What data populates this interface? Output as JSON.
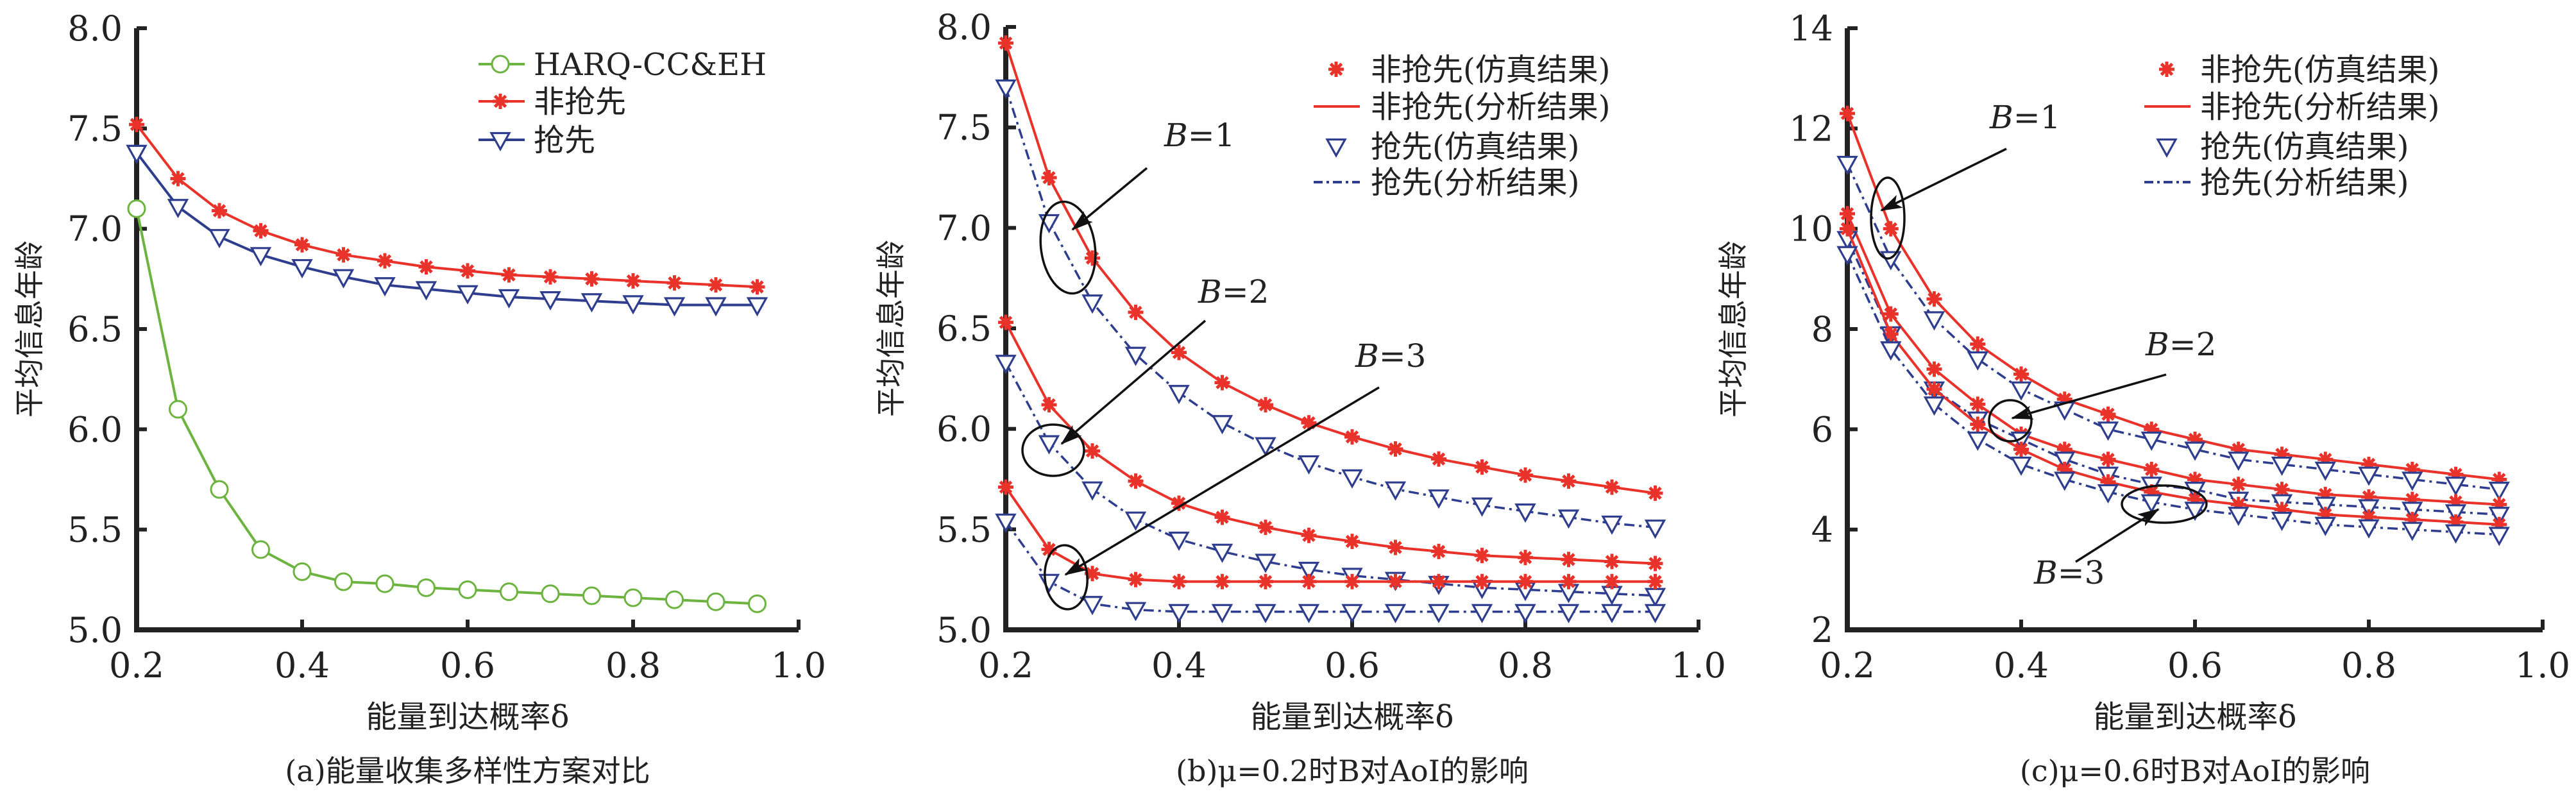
{
  "colors": {
    "green": "#6cb33f",
    "red": "#e8322a",
    "blue": "#2f3d8f",
    "axis": "#222222"
  },
  "chart_data": [
    {
      "type": "line",
      "caption": "(a)能量收集多样性方案对比",
      "xlabel": "能量到达概率δ",
      "ylabel": "平均信息年龄",
      "xlim": [
        0.2,
        1.0
      ],
      "ylim": [
        5.0,
        8.0
      ],
      "xticks": [
        "0.2",
        "0.4",
        "0.6",
        "0.8",
        "1.0"
      ],
      "yticks": [
        "5.0",
        "5.5",
        "6.0",
        "6.5",
        "7.0",
        "7.5",
        "8.0"
      ],
      "legend_position": "top-right",
      "x": [
        0.2,
        0.25,
        0.3,
        0.35,
        0.4,
        0.45,
        0.5,
        0.55,
        0.6,
        0.65,
        0.7,
        0.75,
        0.8,
        0.85,
        0.9,
        0.95
      ],
      "series": [
        {
          "name": "HARQ-CC&EH",
          "color": "green",
          "marker": "circle",
          "style": "solid",
          "values": [
            7.1,
            6.1,
            5.7,
            5.4,
            5.29,
            5.24,
            5.23,
            5.21,
            5.2,
            5.19,
            5.18,
            5.17,
            5.16,
            5.15,
            5.14,
            5.13
          ]
        },
        {
          "name": "非抢先",
          "color": "red",
          "marker": "star",
          "style": "solid",
          "values": [
            7.52,
            7.25,
            7.09,
            6.99,
            6.92,
            6.87,
            6.84,
            6.81,
            6.79,
            6.77,
            6.76,
            6.75,
            6.74,
            6.73,
            6.72,
            6.71
          ]
        },
        {
          "name": "抢先",
          "color": "blue",
          "marker": "triangle",
          "style": "solid",
          "values": [
            7.38,
            7.11,
            6.96,
            6.87,
            6.81,
            6.76,
            6.72,
            6.7,
            6.68,
            6.66,
            6.65,
            6.64,
            6.63,
            6.62,
            6.62,
            6.62
          ]
        }
      ],
      "legend": [
        {
          "label": "HARQ-CC&EH",
          "color": "green",
          "marker": "circle",
          "line": "solid"
        },
        {
          "label": "非抢先",
          "color": "red",
          "marker": "star",
          "line": "solid"
        },
        {
          "label": "抢先",
          "color": "blue",
          "marker": "triangle",
          "line": "solid"
        }
      ],
      "annotations": []
    },
    {
      "type": "line",
      "caption": "(b)μ=0.2时B对AoI的影响",
      "xlabel": "能量到达概率δ",
      "ylabel": "平均信息年龄",
      "xlim": [
        0.2,
        1.0
      ],
      "ylim": [
        5.0,
        8.0
      ],
      "xticks": [
        "0.2",
        "0.4",
        "0.6",
        "0.8",
        "1.0"
      ],
      "yticks": [
        "5.0",
        "5.5",
        "6.0",
        "6.5",
        "7.0",
        "7.5",
        "8.0"
      ],
      "legend_position": "top-right",
      "x": [
        0.2,
        0.25,
        0.3,
        0.35,
        0.4,
        0.45,
        0.5,
        0.55,
        0.6,
        0.65,
        0.7,
        0.75,
        0.8,
        0.85,
        0.9,
        0.95
      ],
      "series": [
        {
          "name": "非抢先 B=1",
          "color": "red",
          "marker": "star",
          "style": "solid",
          "values": [
            7.92,
            7.25,
            6.85,
            6.58,
            6.38,
            6.23,
            6.12,
            6.03,
            5.96,
            5.9,
            5.85,
            5.81,
            5.77,
            5.74,
            5.71,
            5.68
          ]
        },
        {
          "name": "抢先 B=1",
          "color": "blue",
          "marker": "triangle",
          "style": "dashdot",
          "values": [
            7.7,
            7.03,
            6.63,
            6.37,
            6.18,
            6.03,
            5.92,
            5.83,
            5.76,
            5.7,
            5.66,
            5.62,
            5.59,
            5.56,
            5.53,
            5.51
          ]
        },
        {
          "name": "非抢先 B=2",
          "color": "red",
          "marker": "star",
          "style": "solid",
          "values": [
            6.53,
            6.12,
            5.89,
            5.74,
            5.63,
            5.56,
            5.51,
            5.47,
            5.44,
            5.41,
            5.39,
            5.37,
            5.36,
            5.35,
            5.34,
            5.33
          ]
        },
        {
          "name": "抢先 B=2",
          "color": "blue",
          "marker": "triangle",
          "style": "dashdot",
          "values": [
            6.33,
            5.93,
            5.7,
            5.55,
            5.45,
            5.39,
            5.34,
            5.3,
            5.27,
            5.25,
            5.23,
            5.21,
            5.2,
            5.19,
            5.18,
            5.17
          ]
        },
        {
          "name": "非抢先 B=3",
          "color": "red",
          "marker": "star",
          "style": "solid",
          "values": [
            5.71,
            5.4,
            5.28,
            5.25,
            5.24,
            5.24,
            5.24,
            5.24,
            5.24,
            5.24,
            5.24,
            5.24,
            5.24,
            5.24,
            5.24,
            5.24
          ]
        },
        {
          "name": "抢先 B=3",
          "color": "blue",
          "marker": "triangle",
          "style": "dashdot",
          "values": [
            5.54,
            5.24,
            5.13,
            5.1,
            5.09,
            5.09,
            5.09,
            5.09,
            5.09,
            5.09,
            5.09,
            5.09,
            5.09,
            5.09,
            5.09,
            5.09
          ]
        }
      ],
      "legend": [
        {
          "label": "非抢先(仿真结果)",
          "color": "red",
          "marker": "star",
          "line": "none"
        },
        {
          "label": "非抢先(分析结果)",
          "color": "red",
          "marker": "none",
          "line": "solid"
        },
        {
          "label": "抢先(仿真结果)",
          "color": "blue",
          "marker": "triangle",
          "line": "none"
        },
        {
          "label": "抢先(分析结果)",
          "color": "blue",
          "marker": "none",
          "line": "dashdot"
        }
      ],
      "annotations": [
        {
          "var": "B",
          "rest": "=1"
        },
        {
          "var": "B",
          "rest": "=2"
        },
        {
          "var": "B",
          "rest": "=3"
        }
      ]
    },
    {
      "type": "line",
      "caption": "(c)μ=0.6时B对AoI的影响",
      "xlabel": "能量到达概率δ",
      "ylabel": "平均信息年龄",
      "xlim": [
        0.2,
        1.0
      ],
      "ylim": [
        2,
        14
      ],
      "xticks": [
        "0.2",
        "0.4",
        "0.6",
        "0.8",
        "1.0"
      ],
      "yticks": [
        "2",
        "4",
        "6",
        "8",
        "10",
        "12",
        "14"
      ],
      "legend_position": "top-right",
      "x": [
        0.2,
        0.25,
        0.3,
        0.35,
        0.4,
        0.45,
        0.5,
        0.55,
        0.6,
        0.65,
        0.7,
        0.75,
        0.8,
        0.85,
        0.9,
        0.95
      ],
      "series": [
        {
          "name": "非抢先 B=1",
          "color": "red",
          "marker": "star",
          "style": "solid",
          "values": [
            12.3,
            10.0,
            8.6,
            7.7,
            7.1,
            6.6,
            6.3,
            6.0,
            5.8,
            5.6,
            5.5,
            5.4,
            5.3,
            5.2,
            5.1,
            5.0
          ]
        },
        {
          "name": "抢先 B=1",
          "color": "blue",
          "marker": "triangle",
          "style": "dashdot",
          "values": [
            11.3,
            9.4,
            8.2,
            7.4,
            6.8,
            6.4,
            6.0,
            5.8,
            5.6,
            5.4,
            5.3,
            5.2,
            5.1,
            5.0,
            4.9,
            4.8
          ]
        },
        {
          "name": "非抢先 B=2",
          "color": "red",
          "marker": "star",
          "style": "solid",
          "values": [
            10.3,
            8.3,
            7.2,
            6.5,
            5.9,
            5.6,
            5.4,
            5.2,
            5.0,
            4.9,
            4.8,
            4.7,
            4.65,
            4.6,
            4.55,
            4.5
          ]
        },
        {
          "name": "抢先 B=2",
          "color": "blue",
          "marker": "triangle",
          "style": "dashdot",
          "values": [
            9.8,
            7.9,
            6.8,
            6.2,
            5.8,
            5.4,
            5.1,
            4.9,
            4.8,
            4.6,
            4.55,
            4.5,
            4.45,
            4.4,
            4.35,
            4.3
          ]
        },
        {
          "name": "非抢先 B=3",
          "color": "red",
          "marker": "star",
          "style": "solid",
          "values": [
            10.0,
            7.9,
            6.8,
            6.1,
            5.6,
            5.2,
            4.95,
            4.75,
            4.6,
            4.5,
            4.4,
            4.3,
            4.25,
            4.2,
            4.15,
            4.1
          ]
        },
        {
          "name": "抢先 B=3",
          "color": "blue",
          "marker": "triangle",
          "style": "dashdot",
          "values": [
            9.5,
            7.6,
            6.5,
            5.8,
            5.3,
            5.0,
            4.75,
            4.55,
            4.4,
            4.3,
            4.2,
            4.1,
            4.05,
            4.0,
            3.95,
            3.9
          ]
        }
      ],
      "legend": [
        {
          "label": "非抢先(仿真结果)",
          "color": "red",
          "marker": "star",
          "line": "none"
        },
        {
          "label": "非抢先(分析结果)",
          "color": "red",
          "marker": "none",
          "line": "solid"
        },
        {
          "label": "抢先(仿真结果)",
          "color": "blue",
          "marker": "triangle",
          "line": "none"
        },
        {
          "label": "抢先(分析结果)",
          "color": "blue",
          "marker": "none",
          "line": "dashdot"
        }
      ],
      "annotations": [
        {
          "var": "B",
          "rest": "=1"
        },
        {
          "var": "B",
          "rest": "=2"
        },
        {
          "var": "B",
          "rest": "=3"
        }
      ]
    }
  ]
}
